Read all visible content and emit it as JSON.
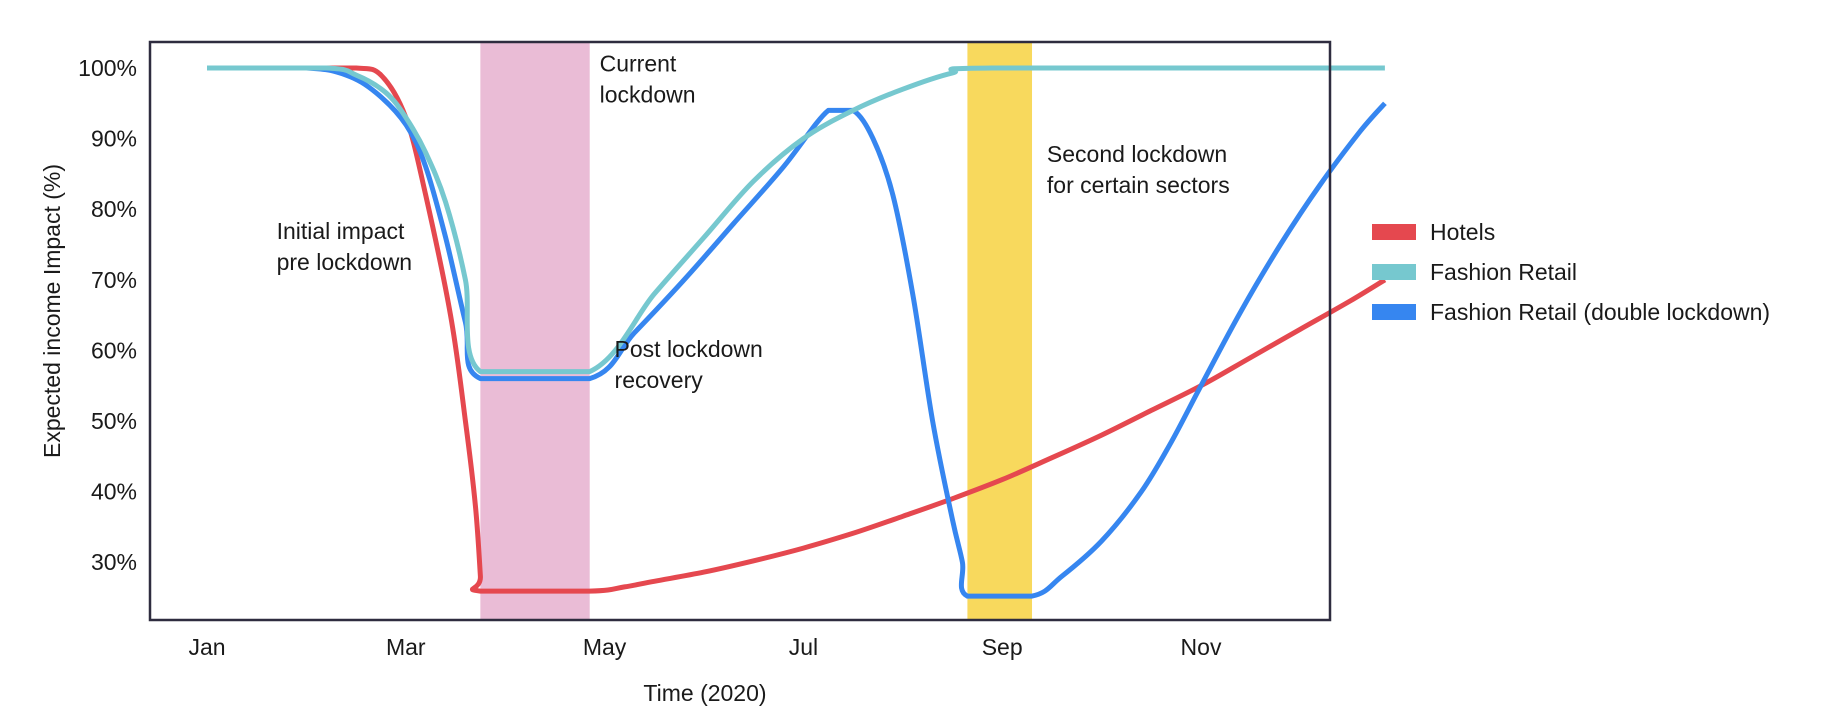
{
  "chart_data": {
    "type": "line",
    "title": "",
    "xlabel": "Time (2020)",
    "ylabel": "Expected income Impact (%)",
    "x_ticks": [
      "Jan",
      "Mar",
      "May",
      "Jul",
      "Sep",
      "Nov"
    ],
    "y_ticks": [
      "30%",
      "40%",
      "50%",
      "60%",
      "70%",
      "80%",
      "90%",
      "100%"
    ],
    "ylim": [
      21.5,
      104
    ],
    "x_axis_months": [
      0,
      11.85
    ],
    "grid": false,
    "legend_position": "right",
    "series": [
      {
        "name": "Hotels",
        "color": "#e5484f",
        "points": [
          [
            0,
            100
          ],
          [
            1,
            100
          ],
          [
            1.5,
            100
          ],
          [
            1.75,
            99
          ],
          [
            2,
            93
          ],
          [
            2.2,
            82
          ],
          [
            2.45,
            65
          ],
          [
            2.6,
            50
          ],
          [
            2.7,
            38
          ],
          [
            2.75,
            28
          ],
          [
            2.75,
            25.9
          ],
          [
            3.85,
            25.9
          ],
          [
            4.2,
            26.5
          ],
          [
            4.5,
            27.3
          ],
          [
            5,
            28.6
          ],
          [
            5.5,
            30.2
          ],
          [
            6,
            32
          ],
          [
            6.5,
            34.1
          ],
          [
            7,
            36.5
          ],
          [
            7.5,
            39
          ],
          [
            8,
            41.7
          ],
          [
            8.5,
            44.8
          ],
          [
            9,
            48
          ],
          [
            9.5,
            51.5
          ],
          [
            10,
            55
          ],
          [
            10.5,
            59
          ],
          [
            11,
            63
          ],
          [
            11.5,
            67
          ],
          [
            11.85,
            70
          ]
        ]
      },
      {
        "name": "Fashion Retail",
        "color": "#76c8cf",
        "points": [
          [
            0,
            100
          ],
          [
            1.2,
            100
          ],
          [
            1.5,
            99
          ],
          [
            1.8,
            96.5
          ],
          [
            2,
            93
          ],
          [
            2.2,
            88
          ],
          [
            2.4,
            81
          ],
          [
            2.6,
            70
          ],
          [
            2.75,
            57
          ],
          [
            3.85,
            57
          ],
          [
            4.5,
            68
          ],
          [
            5,
            76
          ],
          [
            5.5,
            84
          ],
          [
            6,
            90
          ],
          [
            6.5,
            94
          ],
          [
            7,
            97
          ],
          [
            7.5,
            99.3
          ],
          [
            7.9,
            100
          ],
          [
            11.85,
            100
          ]
        ]
      },
      {
        "name": "Fashion Retail (double lockdown)",
        "color": "#3686f0",
        "points": [
          [
            0,
            100
          ],
          [
            1,
            100
          ],
          [
            1.4,
            99
          ],
          [
            1.7,
            96.5
          ],
          [
            2,
            92
          ],
          [
            2.2,
            86
          ],
          [
            2.4,
            76
          ],
          [
            2.6,
            64
          ],
          [
            2.75,
            56
          ],
          [
            3.85,
            56
          ],
          [
            4.3,
            62.5
          ],
          [
            4.8,
            70
          ],
          [
            5.3,
            78
          ],
          [
            5.8,
            86
          ],
          [
            6.25,
            94
          ],
          [
            6.5,
            94
          ],
          [
            6.7,
            90
          ],
          [
            6.9,
            82
          ],
          [
            7.1,
            68
          ],
          [
            7.3,
            50
          ],
          [
            7.5,
            36
          ],
          [
            7.6,
            30
          ],
          [
            7.65,
            25.2
          ],
          [
            8.3,
            25.2
          ],
          [
            8.6,
            28
          ],
          [
            9,
            33
          ],
          [
            9.4,
            40
          ],
          [
            9.7,
            47
          ],
          [
            10,
            55
          ],
          [
            10.4,
            65.5
          ],
          [
            10.8,
            75
          ],
          [
            11.2,
            83.5
          ],
          [
            11.6,
            91
          ],
          [
            11.85,
            95
          ]
        ]
      }
    ],
    "bands": [
      {
        "name": "current-lockdown-band",
        "from": 2.75,
        "to": 3.85,
        "color": "#eabcd6"
      },
      {
        "name": "second-lockdown-band",
        "from": 7.65,
        "to": 8.3,
        "color": "#f8d95d"
      }
    ],
    "annotations": [
      {
        "name": "annotation-current-lockdown",
        "lines": [
          "Current",
          "lockdown"
        ],
        "x": 3.95,
        "y": 99.5
      },
      {
        "name": "annotation-second-lockdown",
        "lines": [
          "Second lockdown",
          "for certain sectors"
        ],
        "x": 8.45,
        "y": 86.7
      },
      {
        "name": "annotation-initial-impact",
        "lines": [
          "Initial impact",
          "pre lockdown"
        ],
        "x": 0.7,
        "y": 75.8
      },
      {
        "name": "annotation-post-lockdown",
        "lines": [
          "Post lockdown",
          "recovery"
        ],
        "x": 4.1,
        "y": 59.1
      }
    ]
  }
}
